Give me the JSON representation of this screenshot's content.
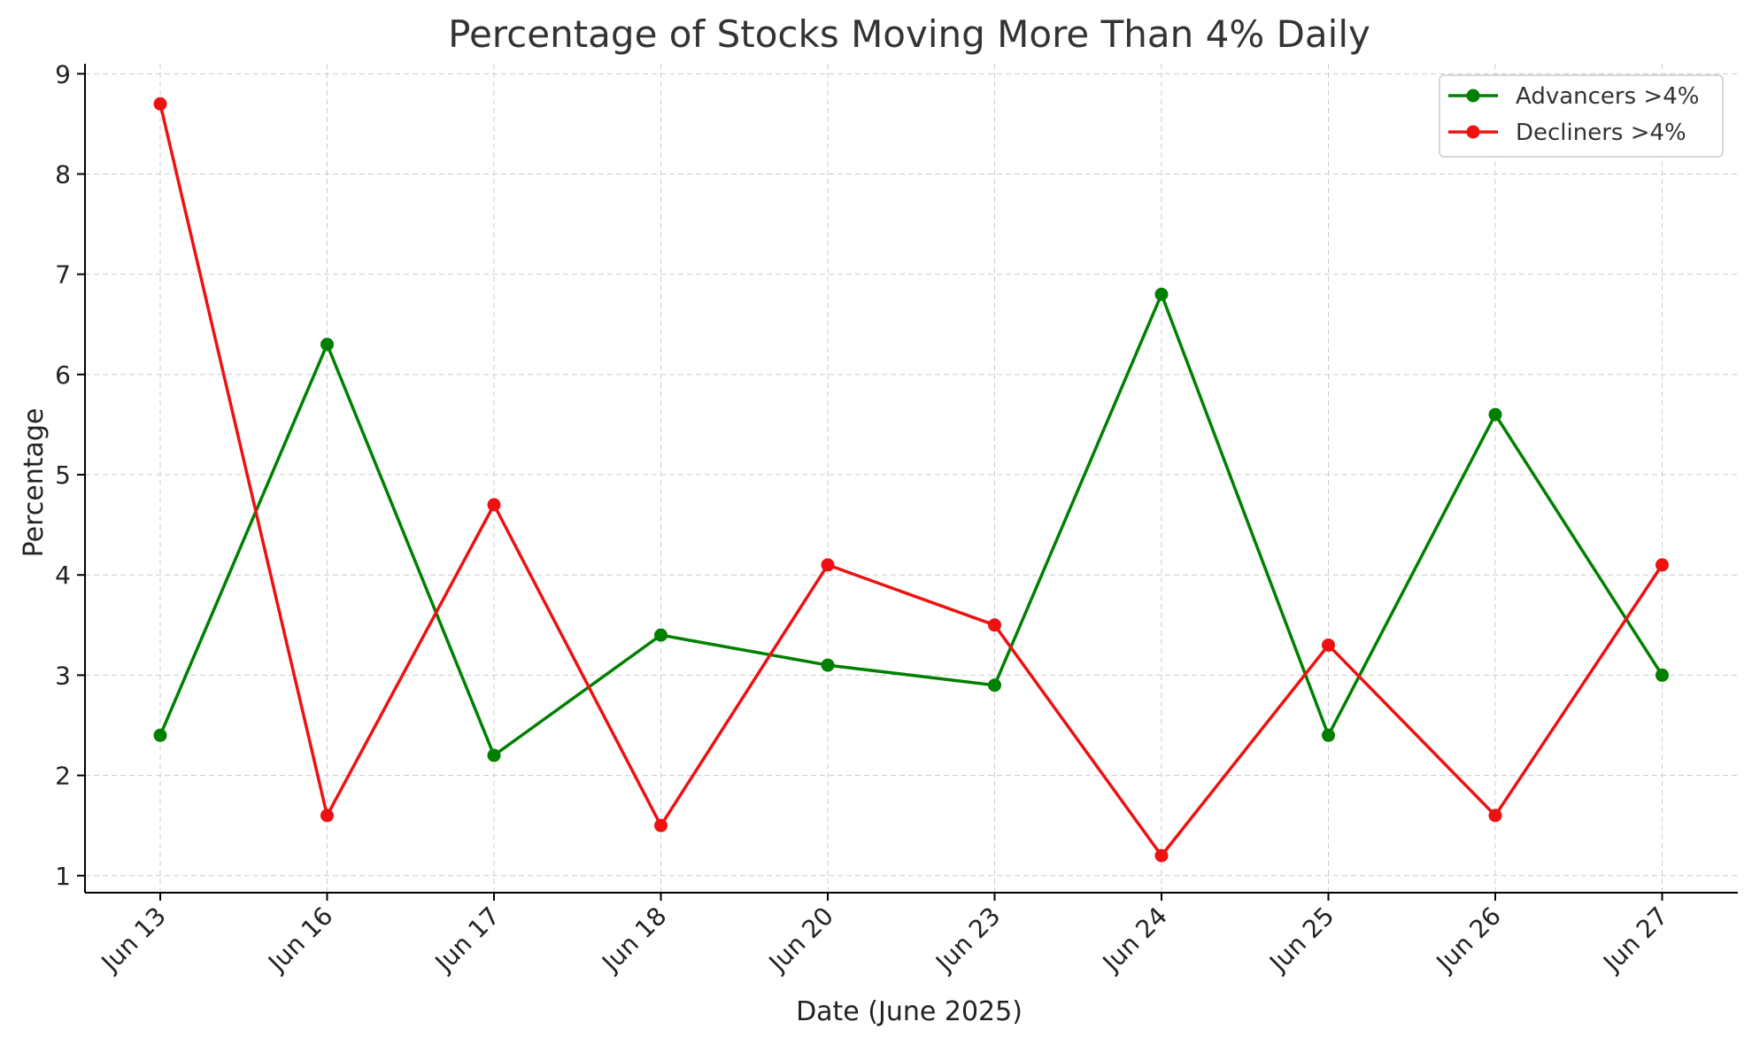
{
  "chart_data": {
    "type": "line",
    "title": "Percentage of Stocks Moving More Than 4% Daily",
    "xlabel": "Date (June 2025)",
    "ylabel": "Percentage",
    "categories": [
      "Jun 13",
      "Jun 16",
      "Jun 17",
      "Jun 18",
      "Jun 20",
      "Jun 23",
      "Jun 24",
      "Jun 25",
      "Jun 26",
      "Jun 27"
    ],
    "yticks": [
      1,
      2,
      3,
      4,
      5,
      6,
      7,
      8,
      9
    ],
    "ylim": [
      0.83,
      9.1
    ],
    "grid": true,
    "legend_position": "top-right",
    "series": [
      {
        "name": "Advancers >4%",
        "color": "#008000",
        "values": [
          2.4,
          6.3,
          2.2,
          3.4,
          3.1,
          2.9,
          6.8,
          2.4,
          5.6,
          3.0
        ]
      },
      {
        "name": "Decliners >4%",
        "color": "#ee1111",
        "values": [
          8.7,
          1.6,
          4.7,
          1.5,
          4.1,
          3.5,
          1.2,
          3.3,
          1.6,
          4.1
        ]
      }
    ]
  }
}
